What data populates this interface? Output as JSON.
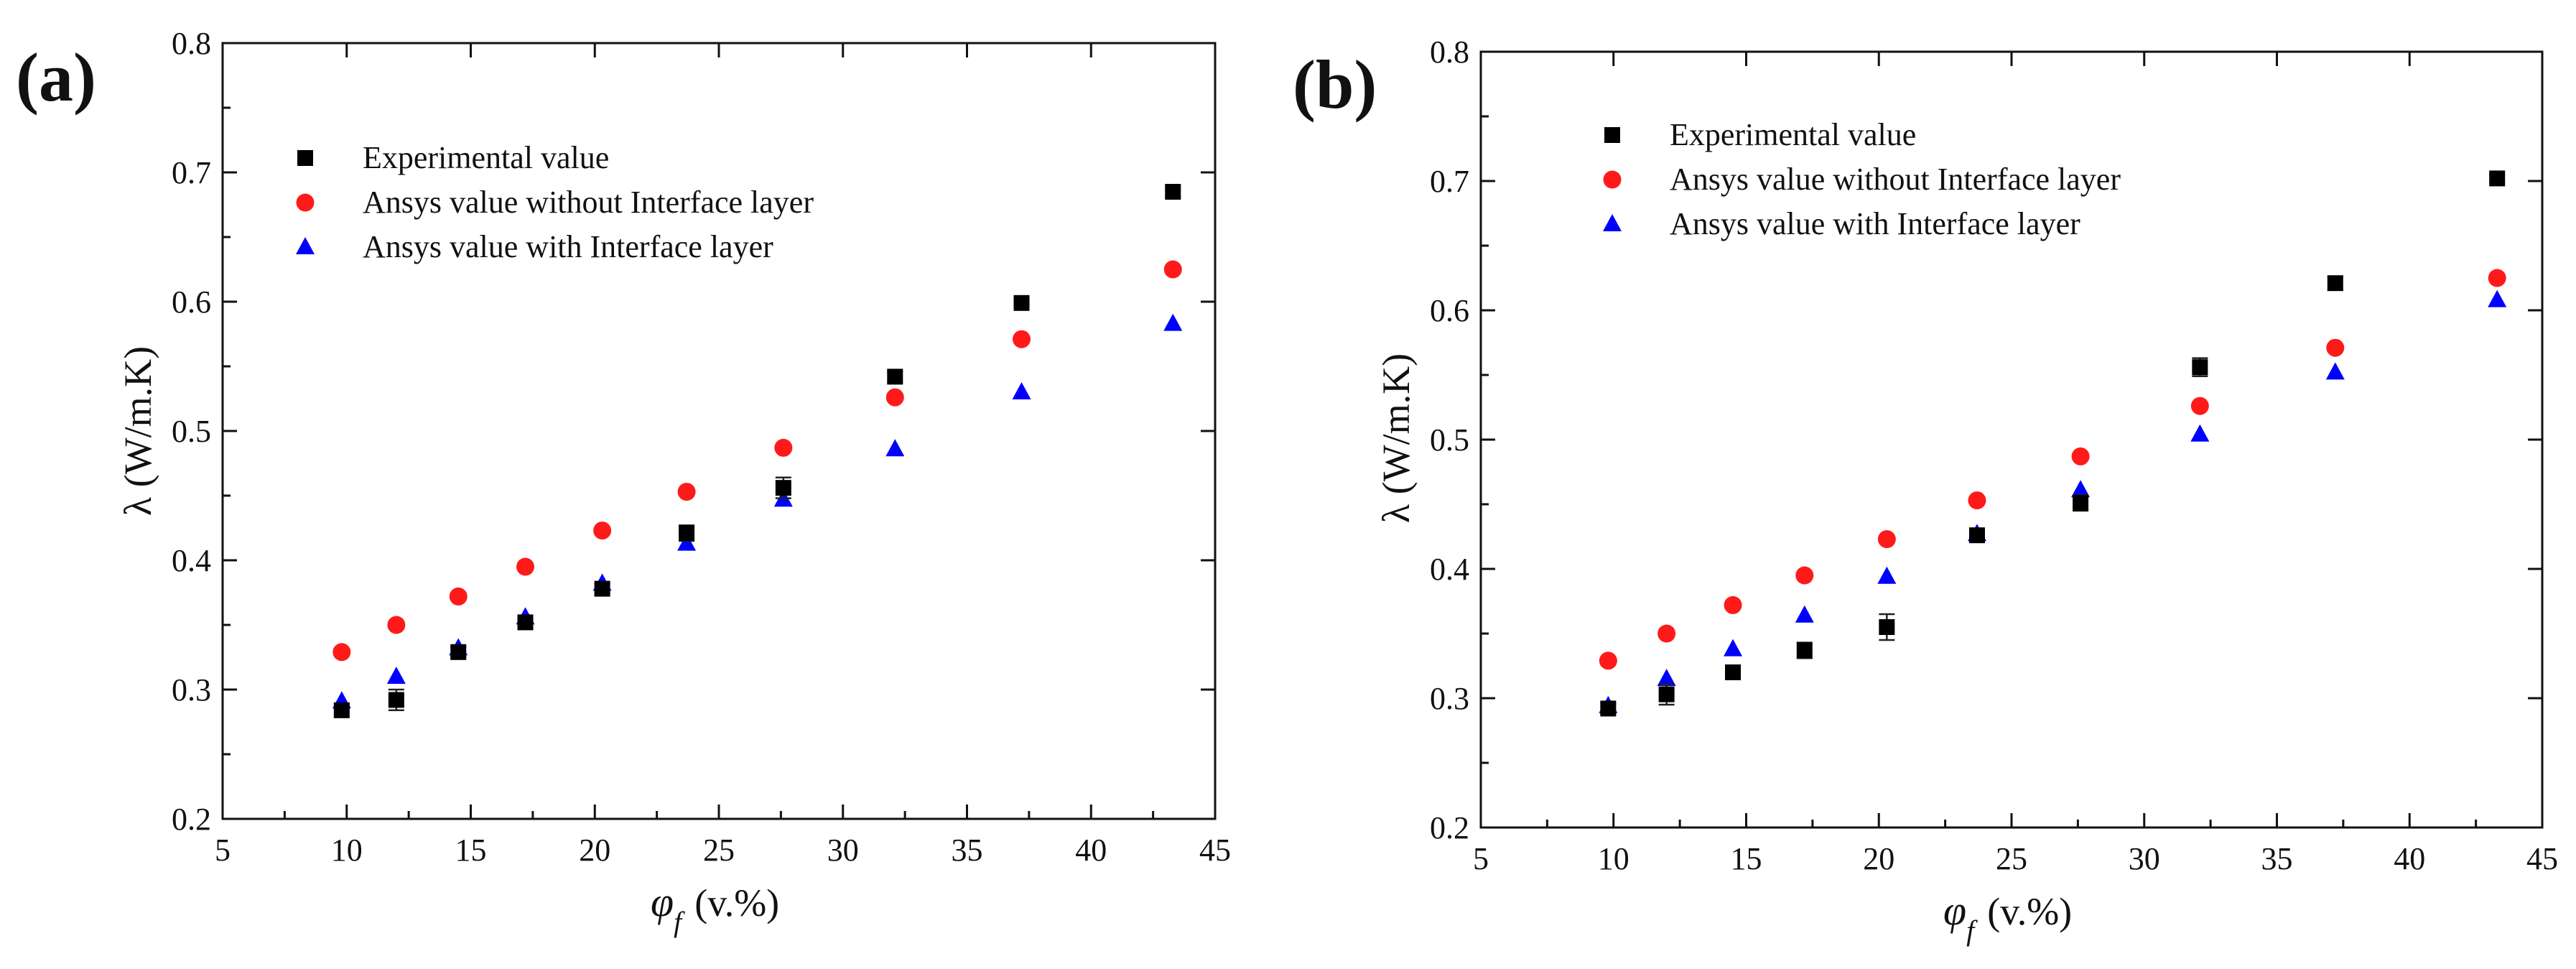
{
  "figure_title": "",
  "chart_data": [
    {
      "panel": "(a)",
      "type": "scatter",
      "title": "",
      "xlabel": "(v.%)",
      "xlabel_symbol": "φ",
      "xlabel_subscript": "f",
      "ylabel": "λ (W/m.K)",
      "xlim": [
        5,
        45
      ],
      "ylim": [
        0.2,
        0.8
      ],
      "xticks": [
        "5",
        "10",
        "15",
        "20",
        "25",
        "30",
        "35",
        "40",
        "45"
      ],
      "yticks": [
        "0.2",
        "0.3",
        "0.4",
        "0.5",
        "0.6",
        "0.7",
        "0.8"
      ],
      "legend_position": "top-left",
      "series": [
        {
          "name": "Experimental value",
          "marker": "square",
          "color": "#000000",
          "x": [
            9.8,
            12.0,
            14.5,
            17.2,
            20.3,
            23.7,
            27.6,
            32.1,
            37.2,
            43.3
          ],
          "y": [
            0.284,
            0.292,
            0.329,
            0.352,
            0.378,
            0.421,
            0.456,
            0.542,
            0.599,
            0.685
          ],
          "err": [
            0.005,
            0.008,
            0.004,
            0.005,
            0.004,
            0.006,
            0.008,
            0.004,
            0.004,
            0.004
          ]
        },
        {
          "name": "Ansys value without Interface layer",
          "marker": "circle",
          "color": "#ff1a1a",
          "x": [
            9.8,
            12.0,
            14.5,
            17.2,
            20.3,
            23.7,
            27.6,
            32.1,
            37.2,
            43.3
          ],
          "y": [
            0.329,
            0.35,
            0.372,
            0.395,
            0.423,
            0.453,
            0.487,
            0.526,
            0.571,
            0.625
          ],
          "err": []
        },
        {
          "name": "Ansys value with Interface layer",
          "marker": "triangle",
          "color": "#0000ff",
          "x": [
            9.8,
            12.0,
            14.5,
            17.2,
            20.3,
            23.7,
            27.6,
            32.1,
            37.2,
            43.3
          ],
          "y": [
            0.291,
            0.31,
            0.332,
            0.356,
            0.382,
            0.413,
            0.447,
            0.486,
            0.53,
            0.583
          ],
          "err": []
        }
      ]
    },
    {
      "panel": "(b)",
      "type": "scatter",
      "title": "",
      "xlabel": "(v.%)",
      "xlabel_symbol": "φ",
      "xlabel_subscript": "f",
      "ylabel": "λ (W/m.K)",
      "xlim": [
        5,
        45
      ],
      "ylim": [
        0.2,
        0.8
      ],
      "xticks": [
        "5",
        "10",
        "15",
        "20",
        "25",
        "30",
        "35",
        "40",
        "45"
      ],
      "yticks": [
        "0.2",
        "0.3",
        "0.4",
        "0.5",
        "0.6",
        "0.7",
        "0.8"
      ],
      "legend_position": "top-left",
      "series": [
        {
          "name": "Experimental value",
          "marker": "square",
          "color": "#000000",
          "x": [
            9.8,
            12.0,
            14.5,
            17.2,
            20.3,
            23.7,
            27.6,
            32.1,
            37.2,
            43.3
          ],
          "y": [
            0.292,
            0.303,
            0.32,
            0.337,
            0.355,
            0.426,
            0.451,
            0.556,
            0.621,
            0.702
          ],
          "err": [
            0.004,
            0.008,
            0.004,
            0.006,
            0.01,
            0.004,
            0.006,
            0.007,
            0.005,
            0.003
          ]
        },
        {
          "name": "Ansys value without Interface layer",
          "marker": "circle",
          "color": "#ff1a1a",
          "x": [
            9.8,
            12.0,
            14.5,
            17.2,
            20.3,
            23.7,
            27.6,
            32.1,
            37.2,
            43.3
          ],
          "y": [
            0.329,
            0.35,
            0.372,
            0.395,
            0.423,
            0.453,
            0.487,
            0.526,
            0.571,
            0.625
          ],
          "err": []
        },
        {
          "name": "Ansys value with Interface layer",
          "marker": "triangle",
          "color": "#0000ff",
          "x": [
            9.8,
            12.0,
            14.5,
            17.2,
            20.3,
            23.7,
            27.6,
            32.1,
            37.2,
            43.3
          ],
          "y": [
            0.294,
            0.315,
            0.338,
            0.364,
            0.394,
            0.427,
            0.461,
            0.504,
            0.552,
            0.608
          ],
          "err": []
        }
      ]
    }
  ]
}
